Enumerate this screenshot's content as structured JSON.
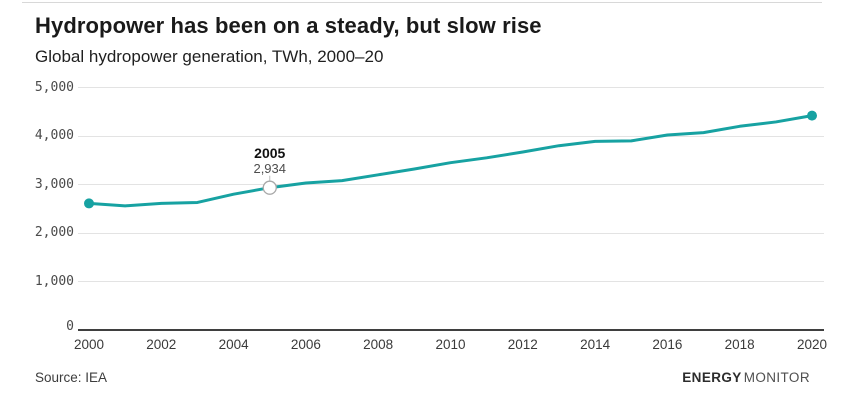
{
  "header": {
    "title": "Hydropower has been on a steady, but slow rise",
    "subtitle": "Global hydropower generation, TWh, 2000–20"
  },
  "footer": {
    "source": "Source: IEA",
    "brand_bold": "ENERGY",
    "brand_light": "MONITOR"
  },
  "colors": {
    "line": "#17A2A2",
    "gridline": "#e3e3e3",
    "axis": "#3f3f3f",
    "annotation_circle_stroke": "#a8a8a8"
  },
  "chart_data": {
    "type": "line",
    "title": "Hydropower has been on a steady, but slow rise",
    "subtitle": "Global hydropower generation, TWh, 2000–20",
    "x": [
      2000,
      2001,
      2002,
      2003,
      2004,
      2005,
      2006,
      2007,
      2008,
      2009,
      2010,
      2011,
      2012,
      2013,
      2014,
      2015,
      2016,
      2017,
      2018,
      2019,
      2020
    ],
    "values": [
      2610,
      2560,
      2610,
      2630,
      2800,
      2934,
      3030,
      3080,
      3200,
      3320,
      3450,
      3550,
      3670,
      3800,
      3890,
      3900,
      4020,
      4070,
      4200,
      4290,
      4420
    ],
    "series_name": "Global hydropower generation (TWh)",
    "xlabel": "",
    "ylabel": "TWh",
    "xlim": [
      2000,
      2020
    ],
    "ylim": [
      0,
      5000
    ],
    "grid": "horizontal",
    "legend": "none",
    "x_ticks": [
      2000,
      2002,
      2004,
      2006,
      2008,
      2010,
      2012,
      2014,
      2016,
      2018,
      2020
    ],
    "y_ticks": [
      {
        "value": 5000,
        "label": "5,000"
      },
      {
        "value": 4000,
        "label": "4,000"
      },
      {
        "value": 3000,
        "label": "3,000"
      },
      {
        "value": 2000,
        "label": "2,000"
      },
      {
        "value": 1000,
        "label": "1,000"
      },
      {
        "value": 0,
        "label": "0"
      }
    ],
    "annotation": {
      "year": 2005,
      "value": 2934,
      "year_label": "2005",
      "value_label": "2,934"
    },
    "endpoint_markers": [
      2000,
      2020
    ]
  }
}
